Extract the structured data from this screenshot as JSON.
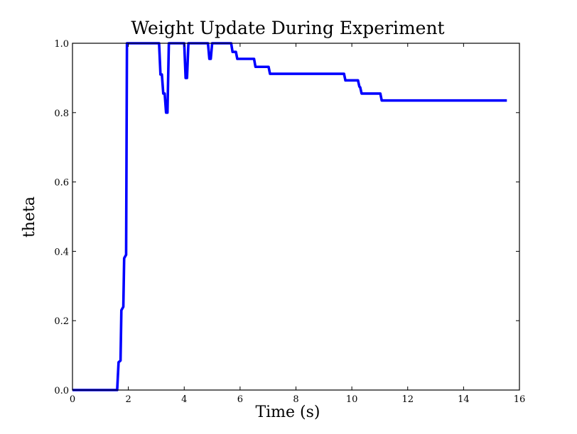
{
  "chart_data": {
    "type": "line",
    "title": "Weight Update During Experiment",
    "xlabel": "Time (s)",
    "ylabel": "theta",
    "xlim": [
      0,
      16
    ],
    "ylim": [
      0.0,
      1.0
    ],
    "xticks": [
      "0",
      "2",
      "4",
      "6",
      "8",
      "10",
      "12",
      "14",
      "16"
    ],
    "yticks": [
      "0.0",
      "0.2",
      "0.4",
      "0.6",
      "0.8",
      "1.0"
    ],
    "grid": false,
    "legend": "none",
    "series": [
      {
        "color": "#0000ff",
        "x": [
          0,
          1.6,
          1.65,
          1.72,
          1.75,
          1.82,
          1.85,
          1.92,
          1.95,
          2.04,
          2.1,
          3.1,
          3.15,
          3.2,
          3.25,
          3.3,
          3.35,
          3.4,
          3.45,
          3.5,
          4.0,
          4.05,
          4.1,
          4.15,
          4.2,
          4.85,
          4.9,
          4.95,
          5.0,
          5.68,
          5.73,
          5.85,
          5.9,
          5.92,
          6.5,
          6.55,
          7.02,
          7.07,
          9.72,
          9.77,
          10.22,
          10.27,
          10.3,
          10.35,
          10.38,
          11.02,
          11.07,
          15.55
        ],
        "y": [
          0.0,
          0.0,
          0.08,
          0.085,
          0.23,
          0.24,
          0.38,
          0.39,
          1.0,
          1.0,
          1.0,
          1.0,
          0.91,
          0.91,
          0.855,
          0.855,
          0.8,
          0.8,
          1.0,
          1.0,
          1.0,
          0.9,
          0.9,
          1.0,
          1.0,
          1.0,
          0.955,
          0.955,
          1.0,
          1.0,
          0.975,
          0.975,
          0.955,
          0.955,
          0.955,
          0.932,
          0.932,
          0.912,
          0.912,
          0.893,
          0.893,
          0.875,
          0.873,
          0.855,
          0.855,
          0.855,
          0.835,
          0.835
        ]
      }
    ]
  }
}
